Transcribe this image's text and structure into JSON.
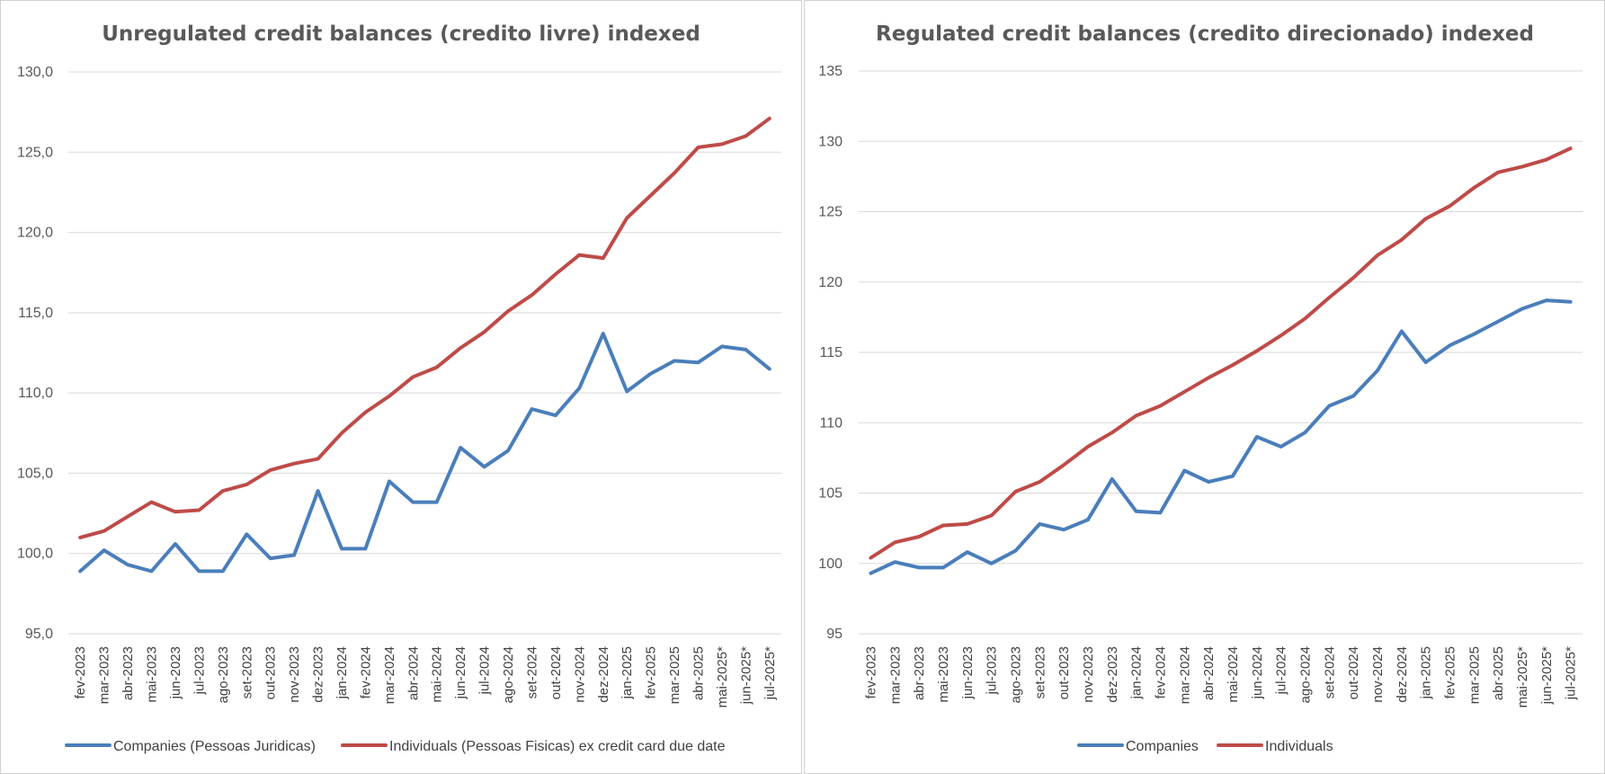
{
  "chart_data": [
    {
      "type": "line",
      "title": "Unregulated credit balances (credito livre) indexed",
      "xlabel": "",
      "ylabel": "",
      "ylim": [
        95,
        130
      ],
      "yticks": [
        95,
        100,
        105,
        110,
        115,
        120,
        125,
        130
      ],
      "ytick_labels": [
        "95,0",
        "100,0",
        "105,0",
        "110,0",
        "115,0",
        "120,0",
        "125,0",
        "130,0"
      ],
      "grid": true,
      "legend_position": "bottom",
      "categories": [
        "fev-2023",
        "mar-2023",
        "abr-2023",
        "mai-2023",
        "jun-2023",
        "jul-2023",
        "ago-2023",
        "set-2023",
        "out-2023",
        "nov-2023",
        "dez-2023",
        "jan-2024",
        "fev-2024",
        "mar-2024",
        "abr-2024",
        "mai-2024",
        "jun-2024",
        "jul-2024",
        "ago-2024",
        "set-2024",
        "out-2024",
        "nov-2024",
        "dez-2024",
        "jan-2025",
        "fev-2025",
        "mar-2025",
        "abr-2025",
        "mai-2025*",
        "jun-2025*",
        "jul-2025*"
      ],
      "series": [
        {
          "name": "Companies (Pessoas Juridicas)",
          "color": "#4a7ebb",
          "values": [
            98.9,
            100.2,
            99.3,
            98.9,
            100.6,
            98.9,
            98.9,
            101.2,
            99.7,
            99.9,
            103.9,
            100.3,
            100.3,
            104.5,
            103.2,
            103.2,
            106.6,
            105.4,
            106.4,
            109.0,
            108.6,
            110.3,
            113.7,
            110.1,
            111.2,
            112.0,
            111.9,
            112.9,
            112.7,
            111.5
          ]
        },
        {
          "name": "Individuals (Pessoas Fisicas) ex credit card due date",
          "color": "#be4b48",
          "values": [
            101.0,
            101.4,
            102.3,
            103.2,
            102.6,
            102.7,
            103.9,
            104.3,
            105.2,
            105.6,
            105.9,
            107.5,
            108.8,
            109.8,
            111.0,
            111.6,
            112.8,
            113.8,
            115.1,
            116.1,
            117.4,
            118.6,
            118.4,
            120.9,
            122.3,
            123.7,
            125.3,
            125.5,
            126.0,
            127.1
          ]
        }
      ]
    },
    {
      "type": "line",
      "title": "Regulated credit balances (credito direcionado) indexed",
      "xlabel": "",
      "ylabel": "",
      "ylim": [
        95,
        135
      ],
      "yticks": [
        95,
        100,
        105,
        110,
        115,
        120,
        125,
        130,
        135
      ],
      "ytick_labels": [
        "95",
        "100",
        "105",
        "110",
        "115",
        "120",
        "125",
        "130",
        "135"
      ],
      "grid": true,
      "legend_position": "bottom",
      "categories": [
        "fev-2023",
        "mar-2023",
        "abr-2023",
        "mai-2023",
        "jun-2023",
        "jul-2023",
        "ago-2023",
        "set-2023",
        "out-2023",
        "nov-2023",
        "dez-2023",
        "jan-2024",
        "fev-2024",
        "mar-2024",
        "abr-2024",
        "mai-2024",
        "jun-2024",
        "jul-2024",
        "ago-2024",
        "set-2024",
        "out-2024",
        "nov-2024",
        "dez-2024",
        "jan-2025",
        "fev-2025",
        "mar-2025",
        "abr-2025",
        "mai-2025*",
        "jun-2025*",
        "jul-2025*"
      ],
      "series": [
        {
          "name": "Companies",
          "color": "#4a7ebb",
          "values": [
            99.3,
            100.1,
            99.7,
            99.7,
            100.8,
            100.0,
            100.9,
            102.8,
            102.4,
            103.1,
            106.0,
            103.7,
            103.6,
            106.6,
            105.8,
            106.2,
            109.0,
            108.3,
            109.3,
            111.2,
            111.9,
            113.7,
            116.5,
            114.3,
            115.5,
            116.3,
            117.2,
            118.1,
            118.7,
            118.6
          ]
        },
        {
          "name": "Individuals",
          "color": "#be4b48",
          "values": [
            100.4,
            101.5,
            101.9,
            102.7,
            102.8,
            103.4,
            105.1,
            105.8,
            107.0,
            108.3,
            109.3,
            110.5,
            111.2,
            112.2,
            113.2,
            114.1,
            115.1,
            116.2,
            117.4,
            118.9,
            120.3,
            121.9,
            123.0,
            124.5,
            125.4,
            126.7,
            127.8,
            128.2,
            128.7,
            129.5
          ]
        }
      ]
    }
  ]
}
